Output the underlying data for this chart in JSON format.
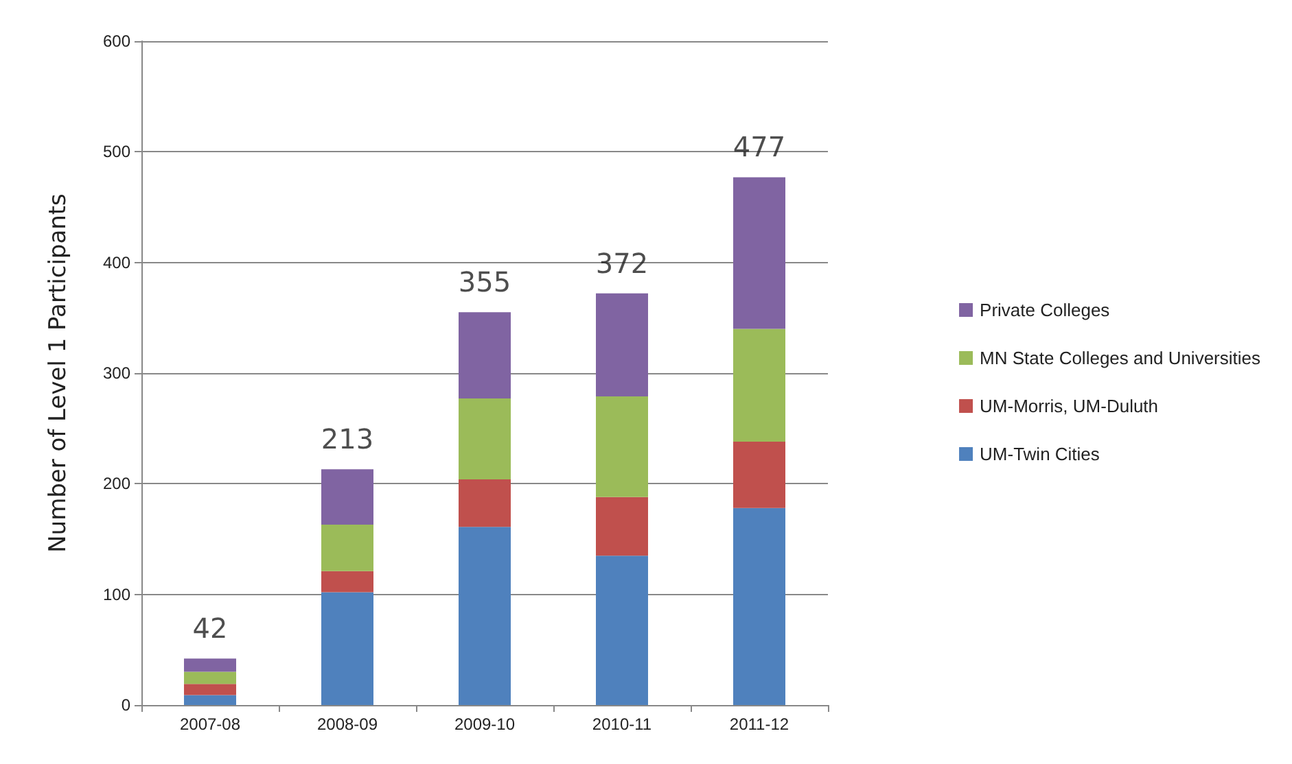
{
  "chart_data": {
    "type": "bar",
    "stacked": true,
    "ylabel": "Number of Level 1 Participants",
    "categories": [
      "2007-08",
      "2008-09",
      "2009-10",
      "2010-11",
      "2011-12"
    ],
    "series": [
      {
        "name": "UM-Twin Cities",
        "color": "#4f81bd",
        "values": [
          9,
          102,
          161,
          135,
          178
        ]
      },
      {
        "name": "UM-Morris, UM-Duluth",
        "color": "#c0504d",
        "values": [
          10,
          19,
          43,
          53,
          60
        ]
      },
      {
        "name": "MN State Colleges and Universities",
        "color": "#9bbb59",
        "values": [
          11,
          42,
          73,
          91,
          102
        ]
      },
      {
        "name": "Private Colleges",
        "color": "#8064a2",
        "values": [
          12,
          50,
          78,
          93,
          137
        ]
      }
    ],
    "totals": [
      "42",
      "213",
      "355",
      "372",
      "477"
    ],
    "ylim": [
      0,
      600
    ],
    "yticks": [
      0,
      100,
      200,
      300,
      400,
      500,
      600
    ],
    "grid": "y",
    "legend": "right"
  }
}
